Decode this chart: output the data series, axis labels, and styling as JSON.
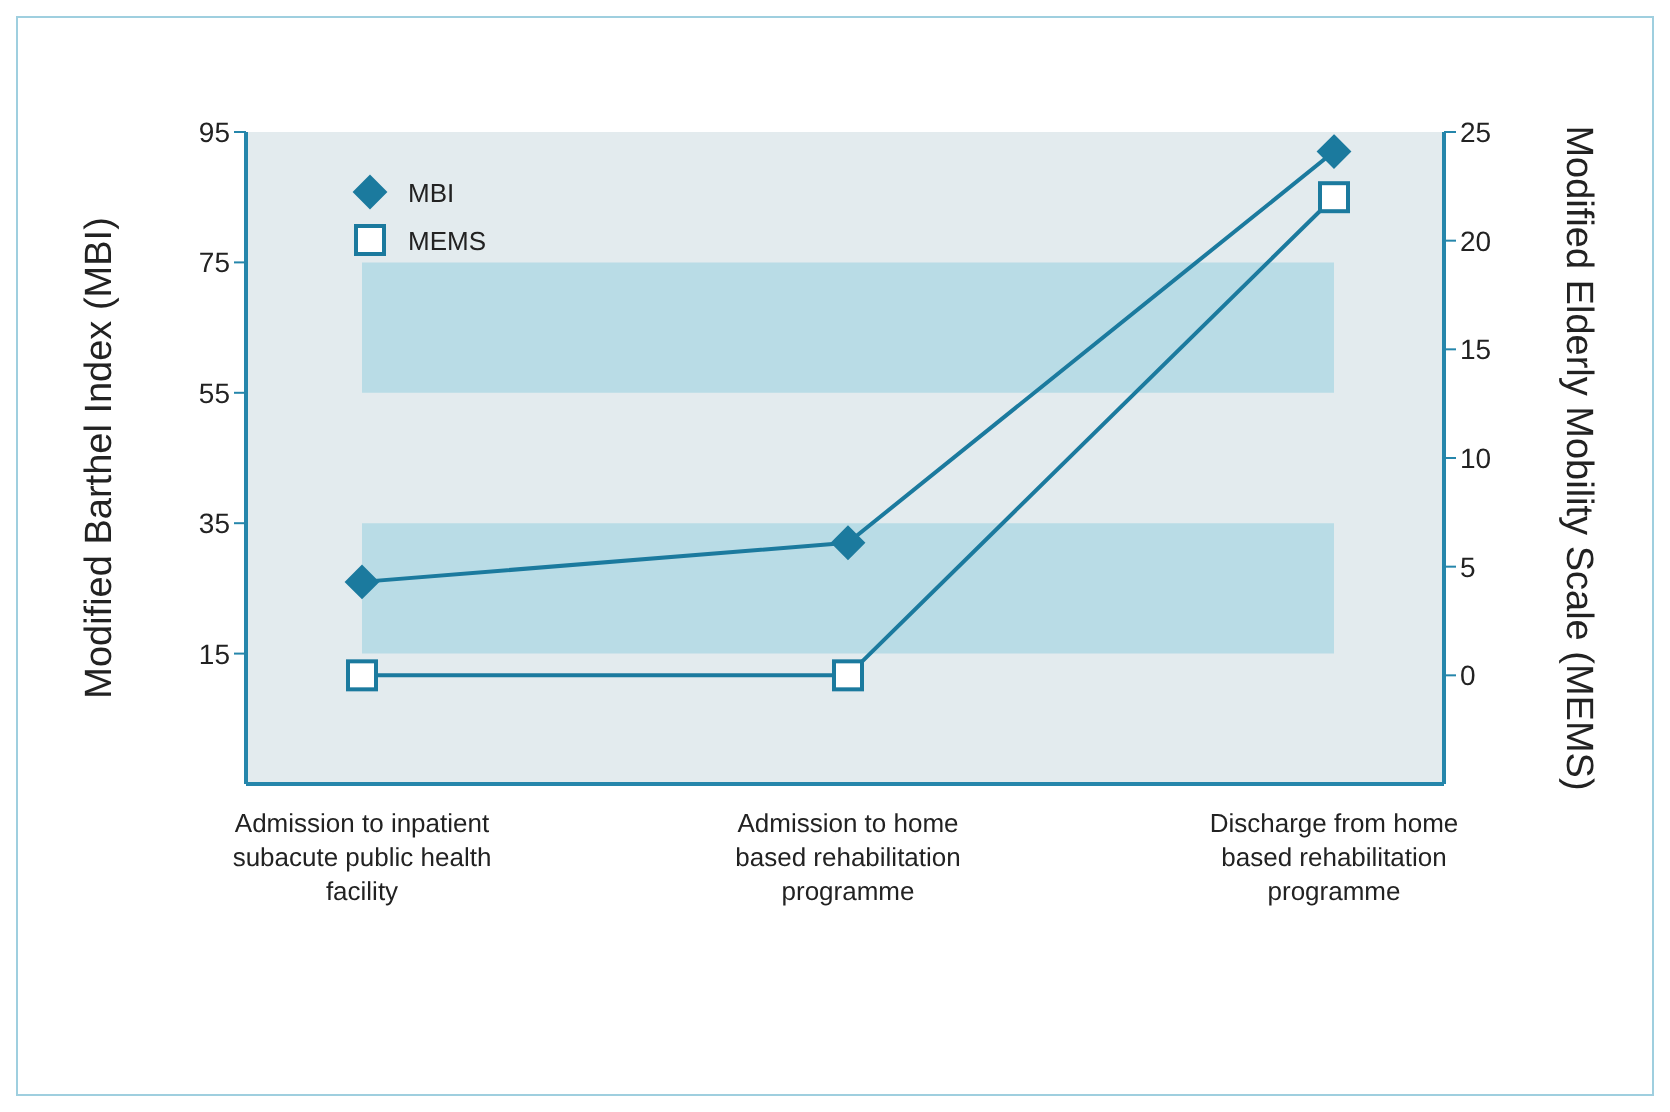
{
  "chart_data": {
    "type": "line",
    "categories": [
      "Admission to inpatient subacute public health facility",
      "Admission to home based rehabilitation programme",
      "Discharge from home based rehabilitation programme"
    ],
    "series": [
      {
        "name": "MBI",
        "color": "#1b7a9e",
        "values": [
          26,
          32,
          92
        ],
        "marker": "diamond"
      },
      {
        "name": "MEMS",
        "color": "#1b7a9e",
        "values": [
          0,
          0,
          22
        ],
        "marker": "square",
        "axis": "y2"
      }
    ],
    "ylabel": "Modified Barthel Index (MBI)",
    "y2label": "Modified Elderly Mobility Scale (MEMS)",
    "ylim": [
      -5,
      95
    ],
    "yticks": [
      15,
      35,
      55,
      75,
      95
    ],
    "y2lim": [
      -5,
      25
    ],
    "y2ticks": [
      0,
      5,
      10,
      15,
      20,
      25
    ],
    "bands": [
      {
        "axis": "y",
        "from": 15,
        "to": 35,
        "color": "#b9dce6"
      },
      {
        "axis": "y",
        "from": 55,
        "to": 75,
        "color": "#b9dce6"
      }
    ],
    "legend": "top left",
    "line_style": "solid"
  }
}
